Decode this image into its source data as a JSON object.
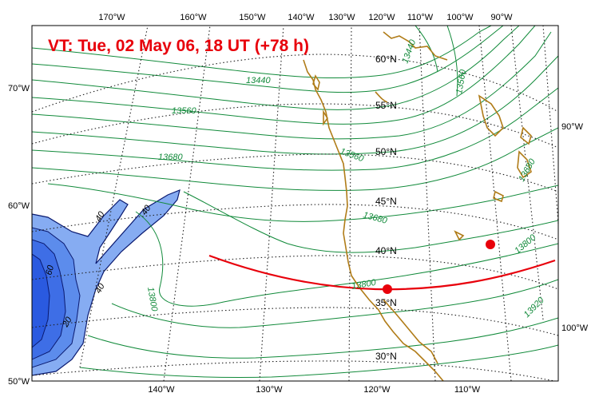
{
  "title": "VT:  Tue, 02 May 06, 18 UT (+78 h)",
  "colors": {
    "title": "#e8000b",
    "contour": "#118a3a",
    "coast": "#b07c18",
    "track": "#e8000b",
    "shade_light": "#7aa5f0",
    "shade_mid": "#4a7fe8",
    "shade_dark": "#2a5ee0",
    "shade_line": "#0a1a70"
  },
  "top_labels": [
    "170°W",
    "160°W",
    "150°W",
    "140°W",
    "130°W",
    "120°W",
    "110°W",
    "100°W",
    "90°W"
  ],
  "bottom_labels": [
    "140°W",
    "130°W",
    "120°W",
    "110°W"
  ],
  "left_labels": [
    "70°W",
    "60°W",
    "50°W"
  ],
  "right_labels": [
    "90°W",
    "100°W"
  ],
  "lat_labels": [
    "60°N",
    "55°N",
    "50°N",
    "45°N",
    "40°N",
    "35°N",
    "30°N"
  ],
  "contour_labels": [
    "13440",
    "13560",
    "13680",
    "13800",
    "13560",
    "13680",
    "13440",
    "13560",
    "13680",
    "13800",
    "13800",
    "13920"
  ],
  "shade_labels": [
    "40",
    "40",
    "60",
    "40",
    "20"
  ],
  "points": [
    "track-start-point",
    "track-end-point"
  ]
}
